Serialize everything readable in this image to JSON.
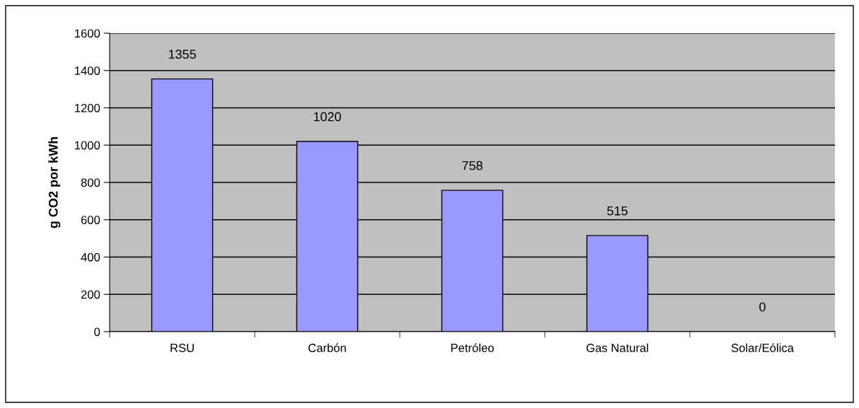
{
  "chart_data": {
    "type": "bar",
    "ylabel": "g CO2 por kWh",
    "categories": [
      "RSU",
      "Carbón",
      "Petróleo",
      "Gas Natural",
      "Solar/Eólica"
    ],
    "values": [
      1355,
      1020,
      758,
      515,
      0
    ],
    "color": "#9999ff",
    "ylim": [
      0,
      1600
    ],
    "yticks": [
      0,
      200,
      400,
      600,
      800,
      1000,
      1200,
      1400,
      1600
    ],
    "grid": "y",
    "data_labels": true
  }
}
